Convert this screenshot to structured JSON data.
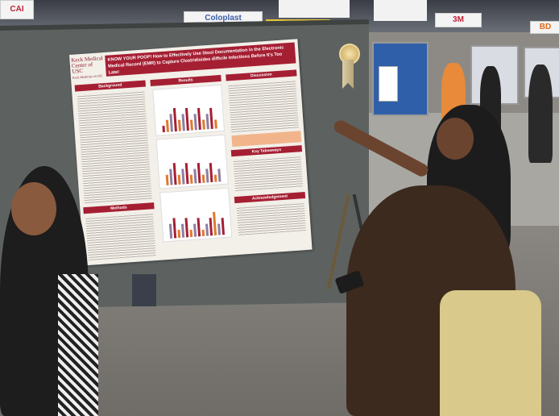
{
  "scene": {
    "banners": [
      "CAI",
      "Coloplast",
      "3M",
      "BD"
    ],
    "poster": {
      "logo": "Keck Medical Center of USC",
      "logo_sub": "Keck Medicine of USC",
      "title": "KNOW YOUR POOP! How to Effectively Use Stool Documentation in the Electronic Medical Record (EMR) to Capture Clostridioides difficile Infections Before It's Too Late!",
      "sections": [
        "Background",
        "Results",
        "Discussion",
        "Methods",
        "Key Takeaways",
        "Acknowledgement"
      ]
    },
    "colors": {
      "poster_accent": "#a51f33",
      "board": "#5d6260",
      "bar_orange": "#e07a2c",
      "bar_red": "#a51f33",
      "bar_purple": "#8e7ea0"
    }
  }
}
